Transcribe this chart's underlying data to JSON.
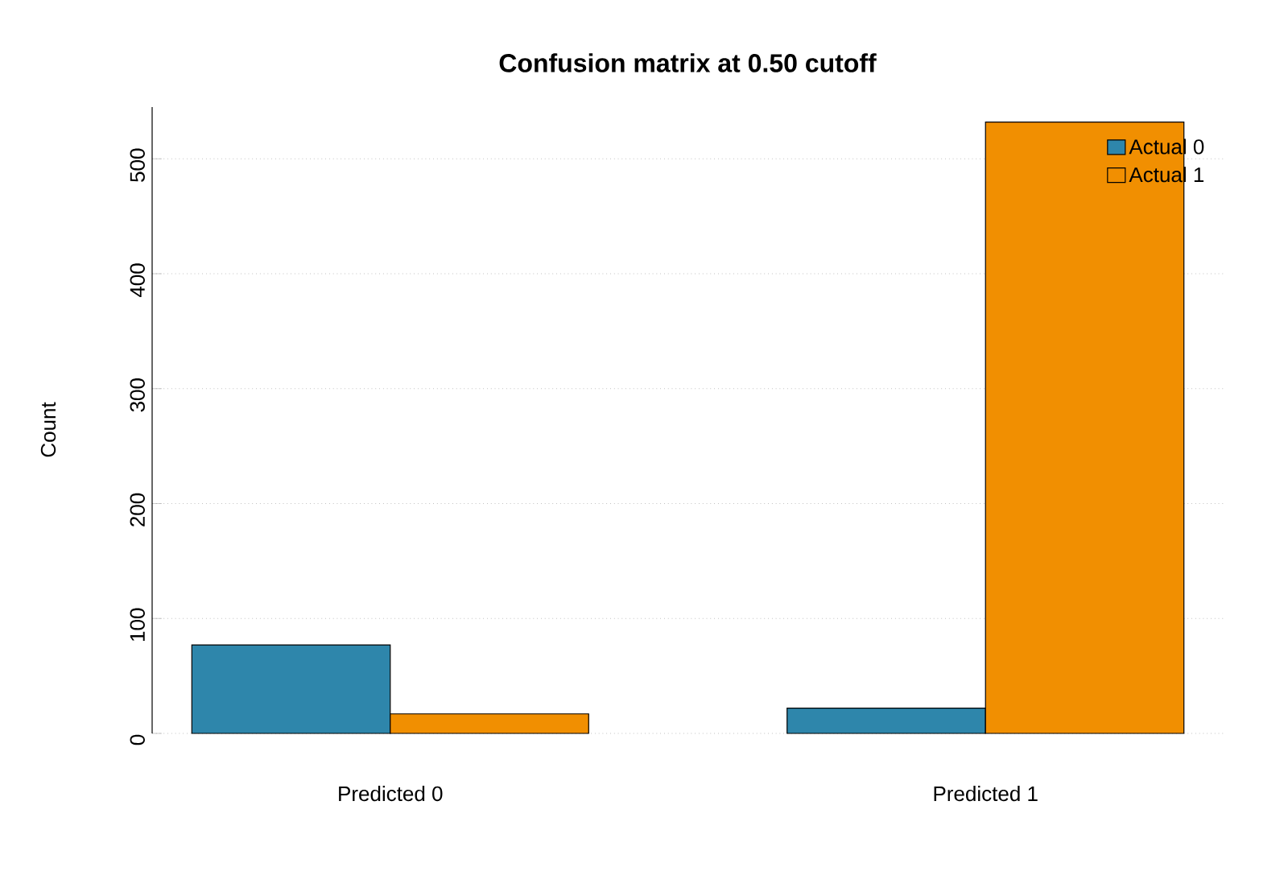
{
  "chart_data": {
    "type": "bar",
    "title": "Confusion matrix at 0.50 cutoff",
    "ylabel": "Count",
    "categories": [
      "Predicted 0",
      "Predicted 1"
    ],
    "series": [
      {
        "name": "Actual 0",
        "color": "#2e86ab",
        "values": [
          77,
          22
        ]
      },
      {
        "name": "Actual 1",
        "color": "#f18f01",
        "values": [
          17,
          532
        ]
      }
    ],
    "ylim": [
      0,
      545
    ],
    "yticks": [
      0,
      100,
      200,
      300,
      400,
      500
    ],
    "grid": "y",
    "legend": "top right"
  }
}
